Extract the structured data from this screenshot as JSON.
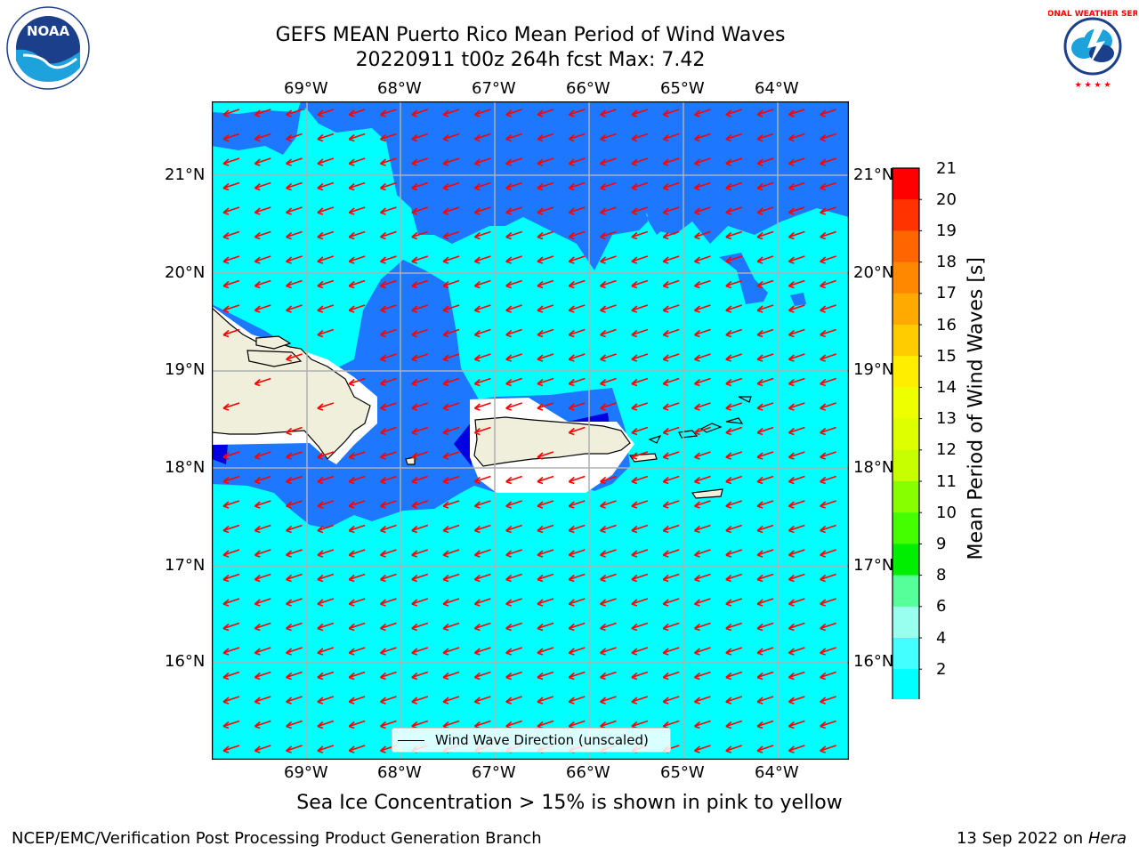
{
  "header": {
    "title_line1": "GEFS MEAN Puerto Rico Mean Period of Wind Waves",
    "title_line2": "20220911 t00z 264h fcst   Max: 7.42"
  },
  "map": {
    "lon_labels": [
      "69°W",
      "68°W",
      "67°W",
      "66°W",
      "65°W",
      "64°W"
    ],
    "lat_labels": [
      "21°N",
      "20°N",
      "19°N",
      "18°N",
      "17°N",
      "16°N"
    ],
    "legend_label": "Wind Wave Direction (unscaled)",
    "colors": {
      "ocean_light": "#00ffff",
      "ocean_dark": "#1e78ff",
      "ocean_darkest": "#0000e0",
      "land": "#efefdb",
      "arrow": "#ff0000"
    }
  },
  "colorbar": {
    "label": "Mean Period of Wind Waves [s]",
    "ticks": [
      "21",
      "20",
      "19",
      "18",
      "17",
      "16",
      "15",
      "14",
      "13",
      "12",
      "11",
      "10",
      "9",
      "8",
      "6",
      "4",
      "2"
    ],
    "colors": [
      "#ff0000",
      "#ff3300",
      "#ff6600",
      "#ff8800",
      "#ffaa00",
      "#ffcc00",
      "#ffee00",
      "#eeff00",
      "#ddff00",
      "#c8ff00",
      "#88ff00",
      "#44ff00",
      "#00ee00",
      "#55ff99",
      "#99ffee",
      "#44ffff",
      "#00ffff",
      "#1e78ff"
    ]
  },
  "footer": {
    "note": "Sea Ice Concentration > 15% is shown in pink to yellow",
    "left": "NCEP/EMC/Verification Post Processing Product Generation Branch",
    "right_date": "13 Sep 2022 on",
    "right_host": "Hera"
  },
  "logos": {
    "noaa": "NOAA",
    "nws": "NATIONAL WEATHER SERVICE"
  }
}
